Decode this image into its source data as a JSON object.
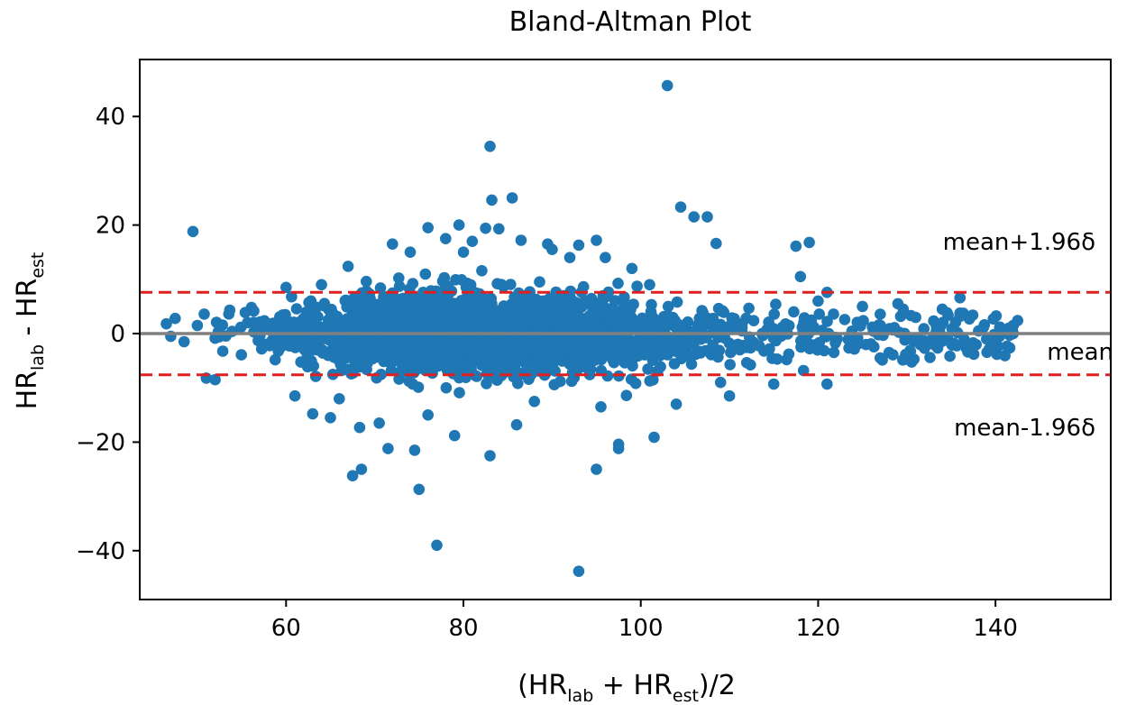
{
  "chart_data": {
    "type": "scatter",
    "title": "Bland-Altman Plot",
    "xlabel": {
      "open": "(HR",
      "sub1": "lab",
      "mid": " + HR",
      "sub2": "est",
      "close": ")/2"
    },
    "ylabel": {
      "main1": "HR",
      "sub1": "lab",
      "mid": " - HR",
      "sub2": "est"
    },
    "xlim": [
      43.5,
      153
    ],
    "ylim": [
      -49,
      50.5
    ],
    "xticks": [
      60,
      80,
      100,
      120,
      140
    ],
    "xtick_labels": [
      "60",
      "80",
      "100",
      "120",
      "140"
    ],
    "yticks": [
      -40,
      -20,
      0,
      20,
      40
    ],
    "ytick_labels": [
      "−40",
      "−20",
      "0",
      "20",
      "40"
    ],
    "mean": 0,
    "upper_loa": 7.6,
    "lower_loa": -7.6,
    "annotations": {
      "upper": "mean+1.96δ",
      "mean": "mean",
      "lower": "mean-1.96δ"
    },
    "colors": {
      "points": "#1f77b4",
      "loa": "#e02020",
      "mean": "#808080"
    },
    "outliers": [
      [
        103,
        45.7
      ],
      [
        83,
        34.5
      ],
      [
        83.2,
        24.6
      ],
      [
        85.5,
        25
      ],
      [
        49.5,
        18.8
      ],
      [
        104.5,
        23.3
      ],
      [
        106,
        21.5
      ],
      [
        107.5,
        21.5
      ],
      [
        108.5,
        16.6
      ],
      [
        117.5,
        16.1
      ],
      [
        119,
        16.8
      ],
      [
        118,
        10.5
      ],
      [
        136,
        6.6
      ],
      [
        93,
        16.3
      ],
      [
        95,
        17.2
      ],
      [
        76,
        19.5
      ],
      [
        79.5,
        20
      ],
      [
        82.5,
        19.4
      ],
      [
        84,
        19.3
      ],
      [
        78,
        17.5
      ],
      [
        72,
        16.5
      ],
      [
        81,
        17
      ],
      [
        86.5,
        17.2
      ],
      [
        89.5,
        16.5
      ],
      [
        93,
        -43.8
      ],
      [
        77,
        -39
      ],
      [
        75,
        -28.7
      ],
      [
        67.5,
        -26.2
      ],
      [
        68.5,
        -25
      ],
      [
        95,
        -25
      ],
      [
        83,
        -22.5
      ],
      [
        71.5,
        -21.2
      ],
      [
        74.5,
        -21.5
      ],
      [
        97.5,
        -20.4
      ],
      [
        101.5,
        -19.1
      ],
      [
        79,
        -18.8
      ],
      [
        86,
        -16.8
      ],
      [
        70.5,
        -16.5
      ],
      [
        68.3,
        -17.3
      ],
      [
        65,
        -15.5
      ],
      [
        63,
        -14.8
      ],
      [
        61,
        -11.5
      ],
      [
        97.5,
        -21.2
      ],
      [
        95.5,
        -13.5
      ],
      [
        104,
        -13
      ],
      [
        110,
        -11.5
      ],
      [
        115,
        -9.3
      ],
      [
        121,
        -9.3
      ],
      [
        109,
        -9
      ],
      [
        52,
        -8.5
      ],
      [
        51,
        -8.2
      ],
      [
        66,
        -12
      ],
      [
        76,
        -15
      ],
      [
        88,
        -12.5
      ],
      [
        46.5,
        1.8
      ],
      [
        47.5,
        2.8
      ],
      [
        48.5,
        -1.5
      ],
      [
        50,
        1.5
      ],
      [
        47,
        -0.5
      ],
      [
        140.5,
        1.2
      ],
      [
        141.5,
        1
      ],
      [
        142.5,
        2.4
      ],
      [
        142,
        0
      ],
      [
        139,
        -1
      ],
      [
        131,
        3
      ],
      [
        133,
        -0.5
      ],
      [
        127,
        -4.5
      ],
      [
        121,
        7.6
      ],
      [
        123,
        2.6
      ],
      [
        92,
        14
      ],
      [
        90,
        15.5
      ],
      [
        74,
        15
      ],
      [
        80,
        15
      ],
      [
        96,
        14
      ],
      [
        60,
        8.5
      ],
      [
        64,
        9
      ],
      [
        67,
        12.4
      ],
      [
        99,
        12
      ],
      [
        101,
        9
      ],
      [
        120,
        6
      ],
      [
        125,
        5
      ],
      [
        129,
        5.5
      ],
      [
        134,
        4.5
      ],
      [
        128,
        -3.5
      ]
    ]
  }
}
